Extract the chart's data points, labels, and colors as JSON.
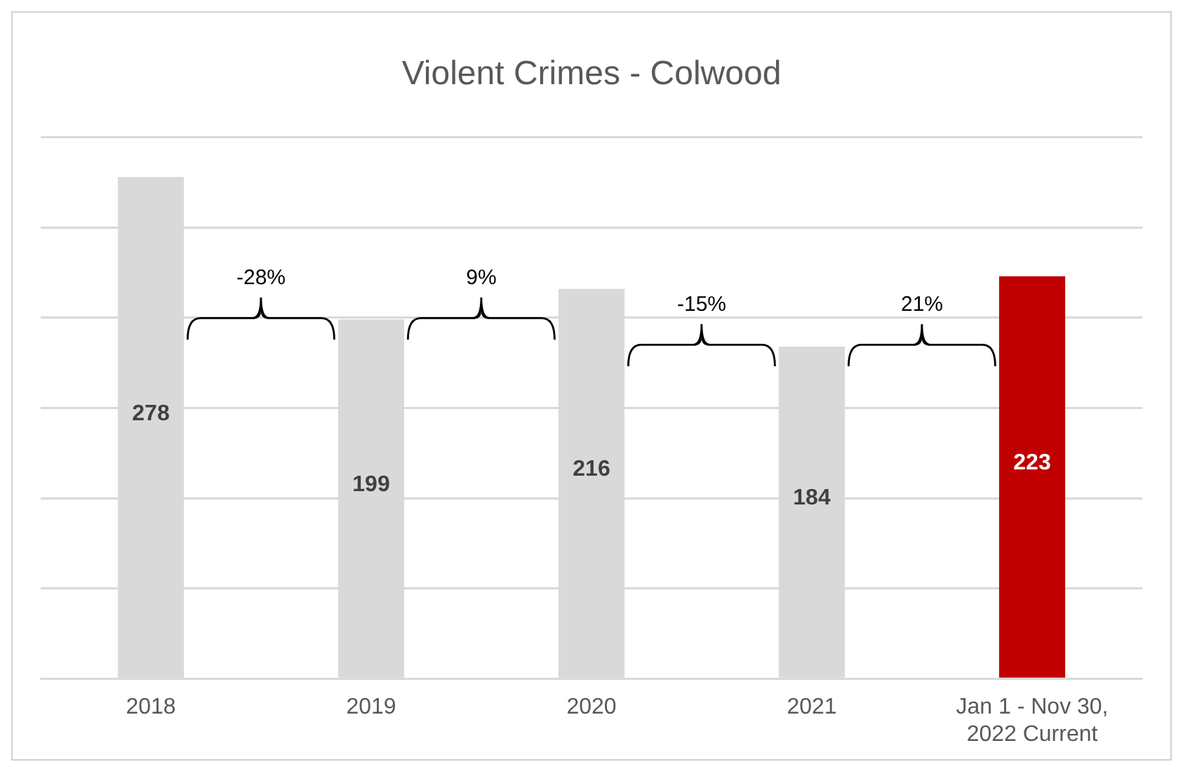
{
  "chart_data": {
    "type": "bar",
    "title": "Violent Crimes - Colwood",
    "categories": [
      "2018",
      "2019",
      "2020",
      "2021",
      "Jan 1 - Nov 30,\n2022 Current"
    ],
    "values": [
      278,
      199,
      216,
      184,
      223
    ],
    "colors": [
      "#d9d9d9",
      "#d9d9d9",
      "#d9d9d9",
      "#d9d9d9",
      "#c00000"
    ],
    "ylim": [
      0,
      300
    ],
    "yticks": [
      {
        "value": 0,
        "label": null
      },
      {
        "value": 50,
        "label": null
      },
      {
        "value": 100,
        "label": null
      },
      {
        "value": 150,
        "label": null
      },
      {
        "value": 200,
        "label": null
      },
      {
        "value": 250,
        "label": null
      },
      {
        "value": 300,
        "label": null
      }
    ],
    "grid": "y",
    "tick_labels": "x",
    "data_labels": true,
    "legend": false,
    "annotations": [
      "-28%",
      "9%",
      "-15%",
      "21%"
    ]
  }
}
